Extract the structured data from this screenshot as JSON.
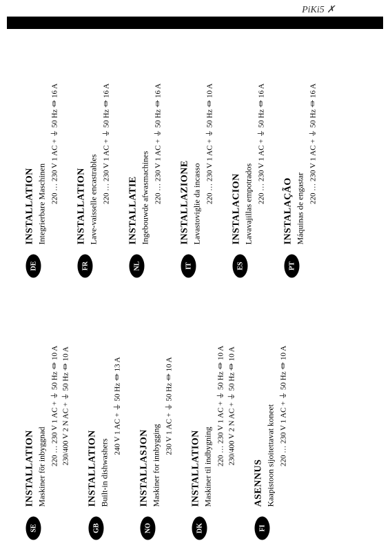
{
  "handwritten_note": "PiKi5 ✗",
  "left_column": [
    {
      "code": "SE",
      "title": "INSTALLATION",
      "subtitle": "Maskiner för inbyggnad",
      "specs": [
        "220 … 230 V  1 AC + ⏚ 50 Hz ⏛ 10 A",
        "230/400 V  2 N AC + ⏚ 50 Hz ⏛ 10 A"
      ]
    },
    {
      "code": "GB",
      "title": "INSTALLATION",
      "subtitle": "Built-in dishwashers",
      "specs": [
        "240 V  1 AC + ⏚ 50 Hz ⏛ 13 A"
      ]
    },
    {
      "code": "NO",
      "title": "INSTALLASJON",
      "subtitle": "Maskiner for innbygging",
      "specs": [
        "230 V  1 AC + ⏚ 50 Hz ⏛ 10 A"
      ]
    },
    {
      "code": "DK",
      "title": "INSTALLATION",
      "subtitle": "Maskiner til indbygning",
      "specs": [
        "220 … 230 V  1 AC + ⏚ 50 Hz ⏛ 10 A",
        "230/400 V  2 N AC + ⏚ 50 Hz ⏛ 10 A"
      ]
    },
    {
      "code": "FI",
      "title": "ASENNUS",
      "subtitle": "Kaapistoon sijoitettavat koneet",
      "specs": [
        "220 … 230 V  1 AC + ⏚ 50 Hz ⏛ 10 A"
      ]
    }
  ],
  "right_column": [
    {
      "code": "DE",
      "title": "INSTALLATION",
      "subtitle": "Integrierbare Maschinen",
      "specs": [
        "220 … 230 V  1 AC + ⏚ 50 Hz ⏛ 16 A"
      ]
    },
    {
      "code": "FR",
      "title": "INSTALLATION",
      "subtitle": "Lave-vaisselle encastrables",
      "specs": [
        "220 … 230 V  1 AC + ⏚ 50 Hz ⏛ 16 A"
      ]
    },
    {
      "code": "NL",
      "title": "INSTALLATIE",
      "subtitle": "Ingebouwde afwasmachines",
      "specs": [
        "220 … 230 V  1 AC + ⏚ 50 Hz ⏛ 16 A"
      ]
    },
    {
      "code": "IT",
      "title": "INSTALLAZIONE",
      "subtitle": "Lavastoviglie da incasso",
      "specs": [
        "220 … 230 V  1 AC + ⏚ 50 Hz ⏛ 10 A"
      ]
    },
    {
      "code": "ES",
      "title": "INSTALACION",
      "subtitle": "Lavavajillas empotrados",
      "specs": [
        "220 … 230 V  1 AC + ⏚ 50 Hz ⏛ 16 A"
      ]
    },
    {
      "code": "PT",
      "title": "INSTALAÇÃO",
      "subtitle": "Máquinas de engastar",
      "specs": [
        "220 … 230 V  1 AC + ⏚ 50 Hz ⏛ 16 A"
      ]
    }
  ]
}
